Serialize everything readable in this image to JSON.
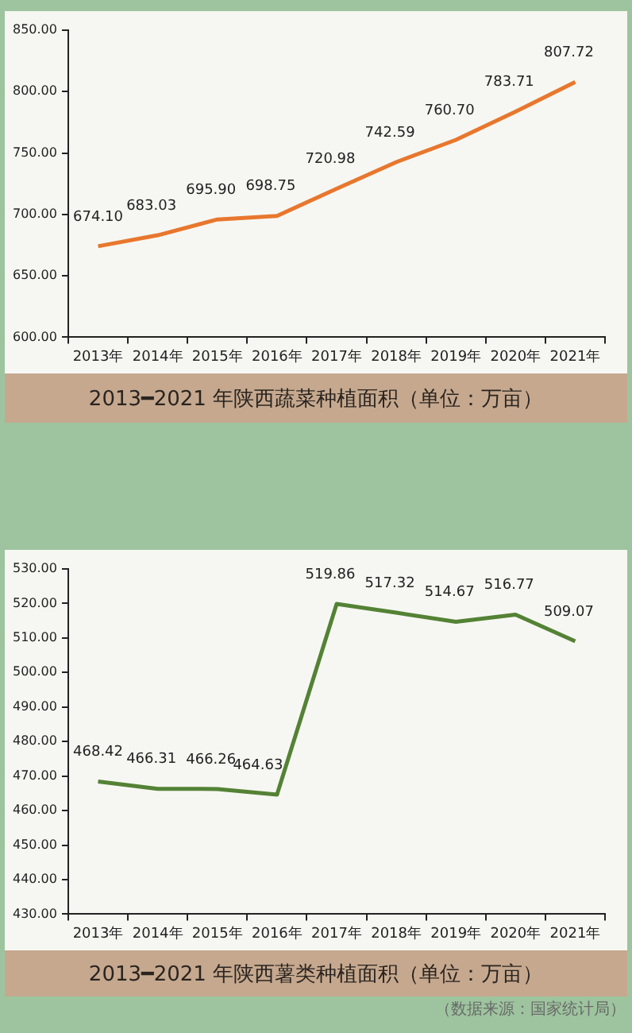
{
  "chart_data": [
    {
      "type": "line",
      "title": "2013━2021 年陕西蔬菜种植面积（单位：万亩）",
      "categories": [
        "2013年",
        "2014年",
        "2015年",
        "2016年",
        "2017年",
        "2018年",
        "2019年",
        "2020年",
        "2021年"
      ],
      "series": [
        {
          "color": "#e8772e",
          "values": [
            674.1,
            683.03,
            695.9,
            698.75,
            720.98,
            742.59,
            760.7,
            783.71,
            807.72
          ],
          "value_labels": [
            "674.10",
            "683.03",
            "695.90",
            "698.75",
            "720.98",
            "742.59",
            "760.70",
            "783.71",
            "807.72"
          ]
        }
      ],
      "ylim": [
        600,
        850
      ],
      "yticks": [
        {
          "value": 600,
          "label": "600.00"
        },
        {
          "value": 650,
          "label": "650.00"
        },
        {
          "value": 700,
          "label": "700.00"
        },
        {
          "value": 750,
          "label": "750.00"
        },
        {
          "value": 800,
          "label": "800.00"
        },
        {
          "value": 850,
          "label": "850.00"
        }
      ],
      "grid": false,
      "legend": false,
      "marker": "none",
      "line_style": "solid"
    },
    {
      "type": "line",
      "title": "2013━2021 年陕西薯类种植面积（单位：万亩）",
      "categories": [
        "2013年",
        "2014年",
        "2015年",
        "2016年",
        "2017年",
        "2018年",
        "2019年",
        "2020年",
        "2021年"
      ],
      "series": [
        {
          "color": "#548235",
          "values": [
            468.42,
            466.31,
            466.26,
            464.63,
            519.86,
            517.32,
            514.67,
            516.77,
            509.07
          ],
          "value_labels": [
            "468.42",
            "466.31",
            "466.26",
            "464.63",
            "519.86",
            "517.32",
            "514.67",
            "516.77",
            "509.07"
          ]
        }
      ],
      "ylim": [
        430,
        530
      ],
      "yticks": [
        {
          "value": 430,
          "label": "430.00"
        },
        {
          "value": 440,
          "label": "440.00"
        },
        {
          "value": 450,
          "label": "450.00"
        },
        {
          "value": 460,
          "label": "460.00"
        },
        {
          "value": 470,
          "label": "470.00"
        },
        {
          "value": 480,
          "label": "480.00"
        },
        {
          "value": 490,
          "label": "490.00"
        },
        {
          "value": 500,
          "label": "500.00"
        },
        {
          "value": 510,
          "label": "510.00"
        },
        {
          "value": 520,
          "label": "520.00"
        },
        {
          "value": 530,
          "label": "530.00"
        }
      ],
      "grid": false,
      "legend": false,
      "marker": "none",
      "line_style": "solid",
      "annotations": [
        "（数据来源：国家统计局）"
      ]
    }
  ]
}
